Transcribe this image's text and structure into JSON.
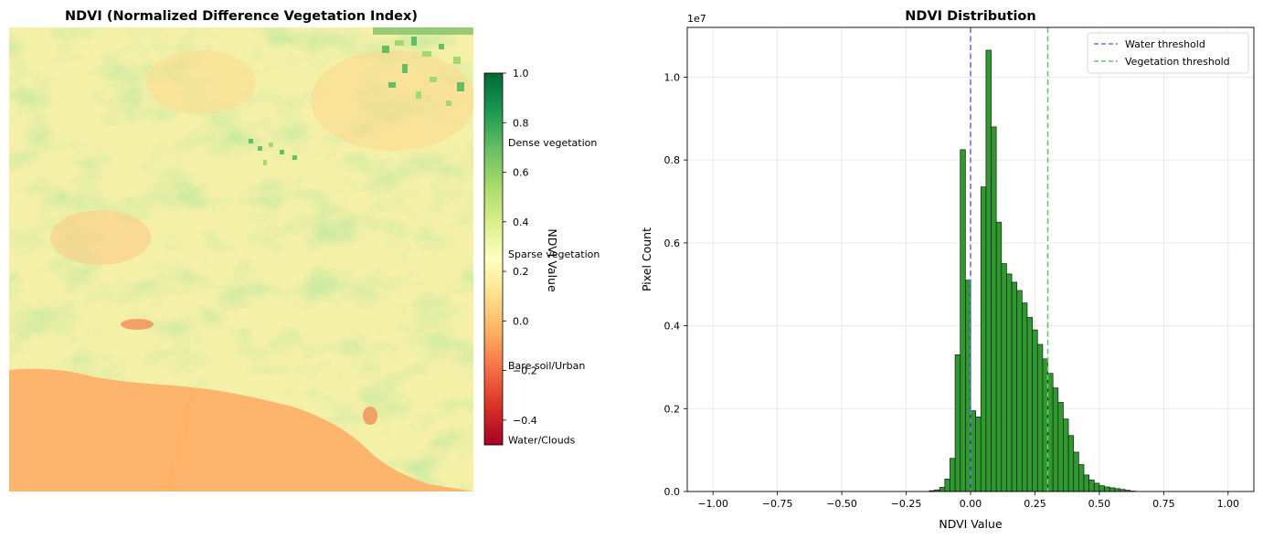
{
  "colors": {
    "bar_fill": "#2e9a2e",
    "bar_edge": "#1a1a1a",
    "water_line": "#6f6fe8",
    "veg_line": "#6cc36c",
    "grid": "#e4e4e4",
    "ocean": "#fdb46c",
    "land_base": "#fde49a"
  },
  "chart_data": [
    {
      "type": "heatmap",
      "title": "NDVI (Normalized Difference Vegetation Index)",
      "description_colormap": "RdYlGn",
      "colorbar": {
        "label": "NDVI Value",
        "range": [
          -0.5,
          1.0
        ],
        "ticks": [
          -0.4,
          -0.2,
          0.0,
          0.2,
          0.4,
          0.6,
          0.8,
          1.0
        ],
        "tick_labels": [
          "−0.4",
          "−0.2",
          "0.0",
          "0.2",
          "0.4",
          "0.6",
          "0.8",
          "1.0"
        ],
        "annotations": [
          {
            "text": "Dense vegetation",
            "value": 0.72
          },
          {
            "text": "Sparse vegetation",
            "value": 0.27
          },
          {
            "text": "Bare soil/Urban",
            "value": -0.18
          },
          {
            "text": "Water/Clouds",
            "value": -0.48
          }
        ]
      }
    },
    {
      "type": "bar",
      "title": "NDVI Distribution",
      "xlabel": "NDVI Value",
      "ylabel": "Pixel Count",
      "y_scale_label": "1e7",
      "xlim": [
        -1.1,
        1.1
      ],
      "ylim": [
        0,
        11.2
      ],
      "y_unit": 10000000,
      "xticks": [
        -1.0,
        -0.75,
        -0.5,
        -0.25,
        0.0,
        0.25,
        0.5,
        0.75,
        1.0
      ],
      "xtick_labels": [
        "−1.00",
        "−0.75",
        "−0.50",
        "−0.25",
        "0.00",
        "0.25",
        "0.50",
        "0.75",
        "1.00"
      ],
      "yticks": [
        0,
        2,
        4,
        6,
        8,
        10
      ],
      "ytick_labels": [
        "0.0",
        "0.2",
        "0.4",
        "0.6",
        "0.8",
        "1.0"
      ],
      "grid": true,
      "legend_position": "top-right",
      "bin_start": -0.16,
      "bin_width": 0.02,
      "values_x1e6": [
        0.02,
        0.04,
        0.1,
        0.3,
        0.8,
        3.3,
        8.25,
        5.1,
        1.95,
        1.8,
        7.35,
        10.65,
        8.8,
        6.5,
        5.5,
        5.25,
        5.05,
        4.85,
        4.55,
        4.2,
        3.9,
        3.55,
        3.2,
        2.85,
        2.5,
        2.15,
        1.75,
        1.35,
        0.95,
        0.65,
        0.4,
        0.28,
        0.2,
        0.14,
        0.11,
        0.09,
        0.07,
        0.05,
        0.03,
        0.01
      ],
      "thresholds": [
        {
          "name": "Water threshold",
          "x": 0.0
        },
        {
          "name": "Vegetation threshold",
          "x": 0.3
        }
      ]
    }
  ]
}
